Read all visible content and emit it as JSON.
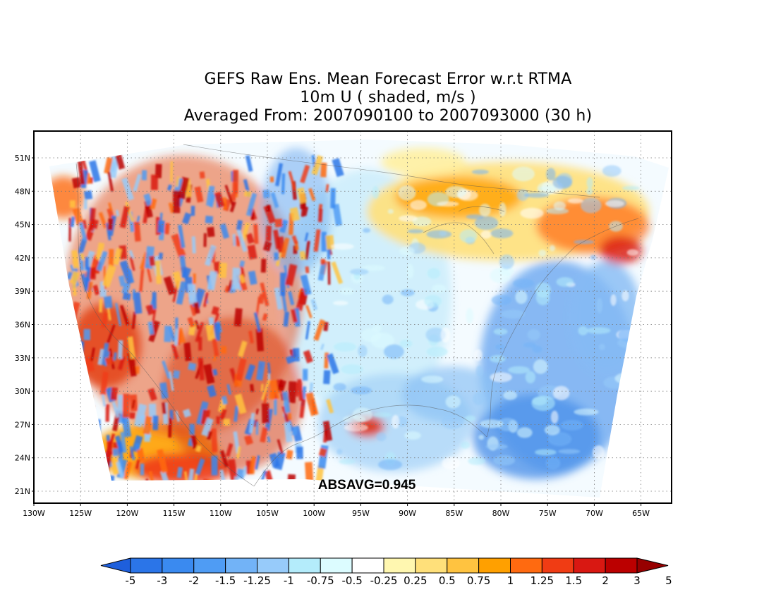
{
  "title": {
    "line1": "GEFS Raw Ens. Mean Forecast Error w.r.t RTMA",
    "line2": "10m U ( shaded, m/s )",
    "line3": "Averaged From: 2007090100 to 2007093000 (30 h)"
  },
  "map": {
    "lat_labels": [
      "51N",
      "48N",
      "45N",
      "42N",
      "39N",
      "36N",
      "33N",
      "30N",
      "27N",
      "24N",
      "21N"
    ],
    "lon_labels": [
      "130W",
      "125W",
      "120W",
      "115W",
      "110W",
      "105W",
      "100W",
      "95W",
      "90W",
      "85W",
      "80W",
      "75W",
      "70W",
      "65W"
    ],
    "statistic": "ABSAVG=0.945",
    "grid": "dotted"
  },
  "colorbar": {
    "labels": [
      "-5",
      "-3",
      "-2",
      "-1.5",
      "-1.25",
      "-1",
      "-0.75",
      "-0.5",
      "-0.25",
      "0.25",
      "0.5",
      "0.75",
      "1",
      "1.25",
      "1.5",
      "2",
      "3",
      "5"
    ],
    "colors": [
      "#1e5fdc",
      "#2b75e8",
      "#3a8af0",
      "#4f9cf4",
      "#72b3f7",
      "#97cbfa",
      "#b4ecfb",
      "#dcfcff",
      "#ffffff",
      "#fff7b0",
      "#ffe07a",
      "#ffc340",
      "#ffa000",
      "#ff6a10",
      "#f03c14",
      "#d91812",
      "#bb0000",
      "#970000"
    ]
  },
  "colors": {
    "neg_strong": "#1e5fdc",
    "neg_light": "#b4ecfb",
    "pos_light": "#ffe07a",
    "pos_strong": "#bb0000"
  }
}
